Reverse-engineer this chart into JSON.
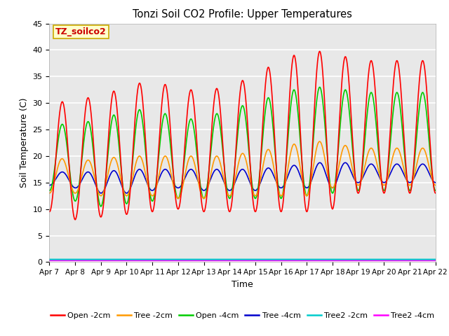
{
  "title": "Tonzi Soil CO2 Profile: Upper Temperatures",
  "xlabel": "Time",
  "ylabel": "Soil Temperature (C)",
  "ylim": [
    0,
    45
  ],
  "background_color": "#e8e8e8",
  "grid_color": "white",
  "annotation_text": "TZ_soilco2",
  "annotation_color": "#cc0000",
  "annotation_bg": "#ffffcc",
  "annotation_border": "#ccaa00",
  "x_tick_labels": [
    "Apr 7",
    "Apr 8",
    "Apr 9",
    "Apr 10",
    "Apr 11",
    "Apr 12",
    "Apr 13",
    "Apr 14",
    "Apr 15",
    "Apr 16",
    "Apr 17",
    "Apr 18",
    "Apr 19",
    "Apr 20",
    "Apr 21",
    "Apr 22"
  ],
  "n_days": 15,
  "series": {
    "Open -2cm": {
      "color": "#ff0000",
      "linewidth": 1.2,
      "peaks": [
        9.5,
        30,
        8,
        30.5,
        8.5,
        31.5,
        9,
        33,
        9.5,
        34.5,
        10,
        32.5,
        9.5,
        32.5,
        9.5,
        33,
        9.5,
        35.5,
        9.5,
        38,
        9.5,
        40,
        10,
        39.5,
        13,
        38,
        13,
        38,
        13,
        38
      ]
    },
    "Tree -2cm": {
      "color": "#ff9900",
      "linewidth": 1.2,
      "peaks": [
        13,
        20,
        13,
        19,
        12.5,
        19.5,
        12.5,
        20,
        12.5,
        20,
        12,
        20,
        12,
        20,
        12.5,
        20,
        12.5,
        21,
        12.5,
        21.5,
        12.5,
        23,
        14,
        22.5,
        14.5,
        21.5,
        14.5,
        21.5,
        14.5,
        21.5
      ]
    },
    "Open -4cm": {
      "color": "#00cc00",
      "linewidth": 1.2,
      "peaks": [
        13.5,
        26,
        11.5,
        26,
        10.5,
        27,
        11,
        28.5,
        11.5,
        29,
        12,
        27,
        12,
        27,
        12,
        29,
        12,
        30,
        12,
        32,
        12.5,
        33,
        13,
        33,
        13.5,
        32,
        13.5,
        32,
        13.5,
        32
      ]
    },
    "Tree -4cm": {
      "color": "#0000cc",
      "linewidth": 1.2,
      "peaks": [
        14.5,
        17,
        14,
        17,
        13,
        17,
        13,
        17.5,
        13.5,
        17.5,
        14,
        17.5,
        13.5,
        17.5,
        13.5,
        17.5,
        13.5,
        17.5,
        14,
        18,
        14,
        18.5,
        14,
        19,
        15,
        18.5,
        15,
        18.5,
        15,
        18.5
      ]
    },
    "Tree2 -2cm": {
      "color": "#00cccc",
      "linewidth": 1.5,
      "flat_value": 0.5
    },
    "Tree2 -4cm": {
      "color": "#ff00ff",
      "linewidth": 1.5,
      "flat_value": 0.3
    }
  }
}
